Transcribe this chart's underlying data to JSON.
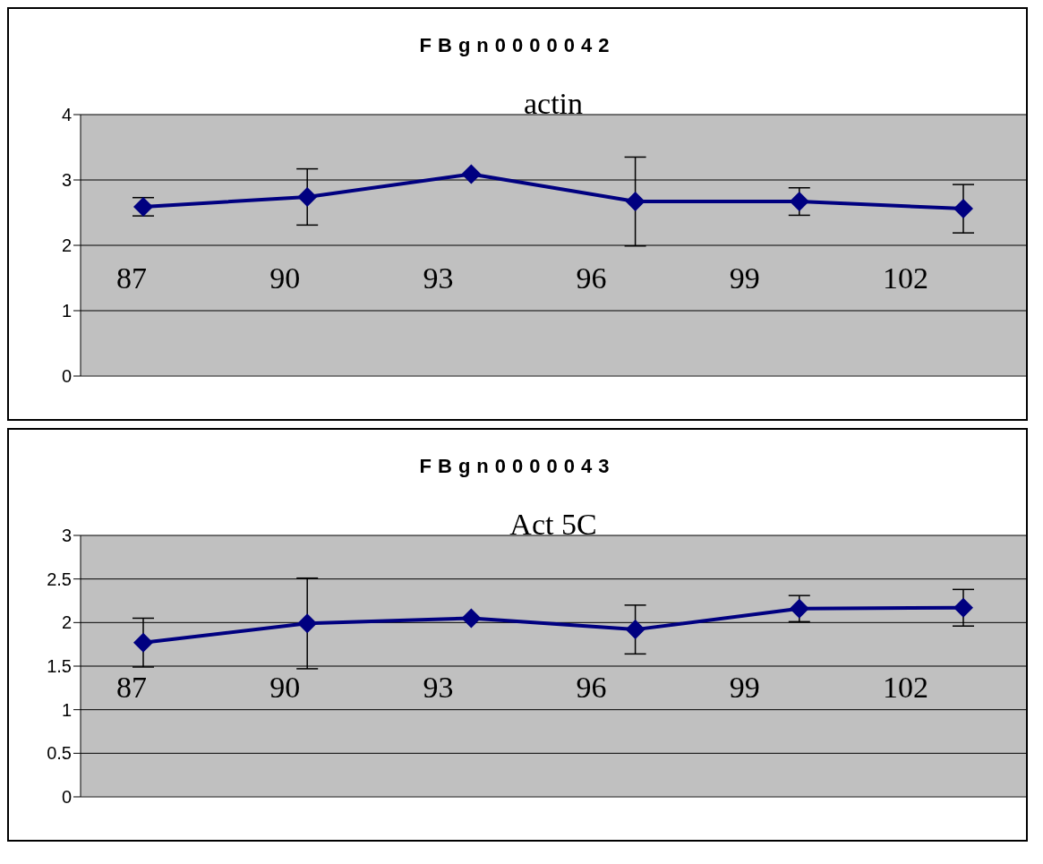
{
  "chart_data": [
    {
      "type": "line",
      "title": "FBgn0000042",
      "subtitle": "actin",
      "categories": [
        null,
        null,
        null,
        null,
        null,
        null
      ],
      "values": [
        2.59,
        2.74,
        3.09,
        2.67,
        2.67,
        2.56
      ],
      "errors": [
        0.14,
        0.43,
        null,
        0.68,
        0.21,
        0.37
      ],
      "color": "#000080",
      "ylim": [
        0,
        4
      ],
      "yticks": [
        0,
        1,
        2,
        3,
        4
      ],
      "grid": "y",
      "marker": "diamond",
      "tick_labels": "y",
      "annotations": [
        "87",
        "90",
        "93",
        "96",
        "99",
        "102"
      ]
    },
    {
      "type": "line",
      "title": "FBgn0000043",
      "subtitle": "Act 5C",
      "categories": [
        null,
        null,
        null,
        null,
        null,
        null
      ],
      "values": [
        1.77,
        1.99,
        2.05,
        1.92,
        2.16,
        2.17
      ],
      "errors": [
        0.28,
        0.52,
        null,
        0.28,
        0.15,
        0.21
      ],
      "color": "#000080",
      "ylim": [
        0,
        3
      ],
      "yticks": [
        0,
        0.5,
        1,
        1.5,
        2,
        2.5,
        3
      ],
      "grid": "y",
      "marker": "diamond",
      "tick_labels": "y",
      "annotations": [
        "87",
        "90",
        "93",
        "96",
        "99",
        "102"
      ]
    }
  ]
}
